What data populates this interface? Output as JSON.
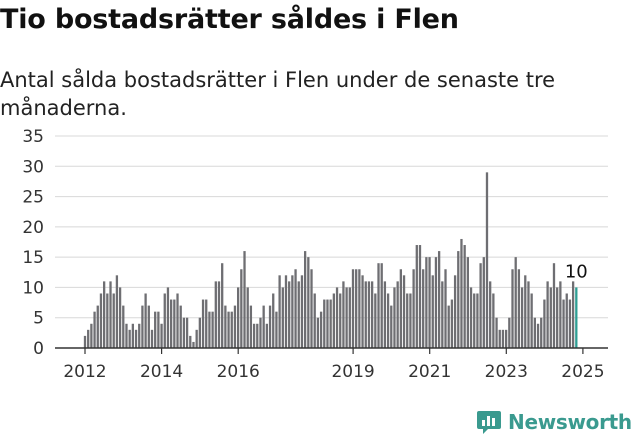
{
  "title": "Tio bostadsrätter såldes i Flen",
  "subtitle": "Antal sålda bostadsrätter i Flen under de senaste tre månaderna.",
  "brand": {
    "name": "Newsworthy",
    "color": "#3a9a8f",
    "icon": "bar-chart-logo-icon"
  },
  "colors": {
    "bar": "#6e6e72",
    "highlight": "#2e9e94",
    "grid": "#d8d8d8",
    "axis": "#333333"
  },
  "chart_data": {
    "type": "bar",
    "ylim": [
      0,
      35
    ],
    "yticks": [
      0,
      5,
      10,
      15,
      20,
      25,
      30,
      35
    ],
    "x_start": 2012.0,
    "x_step": 0.0833,
    "xticks": [
      2012,
      2014,
      2016,
      2019,
      2021,
      2023,
      2025
    ],
    "xticklabels": [
      "2012",
      "2014",
      "2016",
      "2019",
      "2021",
      "2023",
      "2025"
    ],
    "values": [
      2,
      3,
      4,
      6,
      7,
      9,
      11,
      9,
      11,
      9,
      12,
      10,
      7,
      4,
      3,
      4,
      3,
      4,
      7,
      9,
      7,
      3,
      6,
      6,
      4,
      9,
      10,
      8,
      8,
      9,
      7,
      5,
      5,
      2,
      1,
      3,
      5,
      8,
      8,
      6,
      6,
      11,
      11,
      14,
      7,
      6,
      6,
      7,
      10,
      13,
      16,
      10,
      7,
      4,
      4,
      5,
      7,
      4,
      7,
      9,
      6,
      12,
      10,
      12,
      11,
      12,
      13,
      11,
      12,
      16,
      15,
      13,
      9,
      5,
      6,
      8,
      8,
      8,
      9,
      10,
      9,
      11,
      10,
      10,
      13,
      13,
      13,
      12,
      11,
      11,
      11,
      9,
      14,
      14,
      11,
      9,
      7,
      10,
      11,
      13,
      12,
      9,
      9,
      13,
      17,
      17,
      13,
      15,
      15,
      12,
      15,
      16,
      11,
      13,
      7,
      8,
      12,
      16,
      18,
      17,
      15,
      10,
      9,
      9,
      14,
      15,
      29,
      11,
      9,
      5,
      3,
      3,
      3,
      5,
      13,
      15,
      13,
      10,
      12,
      11,
      9,
      5,
      4,
      5,
      8,
      11,
      10,
      14,
      10,
      11,
      8,
      9,
      8,
      11,
      10
    ],
    "last_label": "10"
  }
}
